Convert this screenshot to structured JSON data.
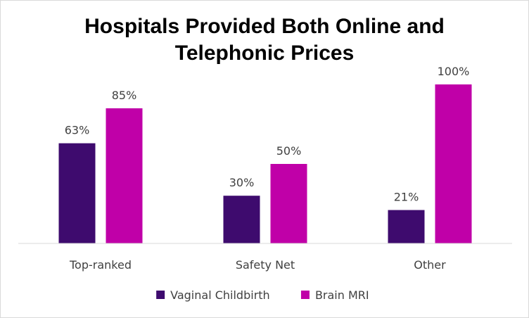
{
  "chart_data": {
    "type": "bar",
    "title_lines": [
      "Hospitals Provided Both Online and",
      "Telephonic Prices"
    ],
    "categories": [
      "Top-ranked",
      "Safety Net",
      "Other"
    ],
    "series": [
      {
        "name": "Vaginal Childbirth",
        "color": "#3e0b6e",
        "values": [
          63,
          30,
          21
        ],
        "labels": [
          "63%",
          "30%",
          "21%"
        ]
      },
      {
        "name": "Brain MRI",
        "color": "#c000a8",
        "values": [
          85,
          50,
          100
        ],
        "labels": [
          "85%",
          "50%",
          "100%"
        ]
      }
    ],
    "ylim": [
      0,
      100
    ],
    "grid": false,
    "legend_position": "bottom"
  }
}
